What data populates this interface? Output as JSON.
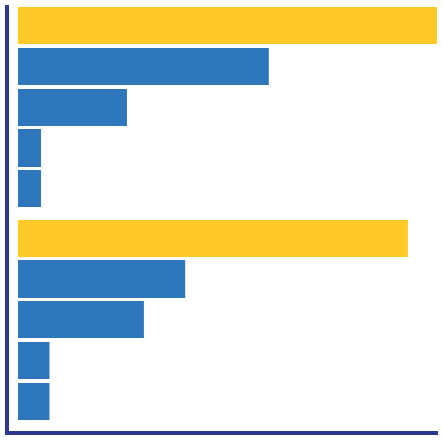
{
  "chart_data": {
    "type": "bar",
    "orientation": "horizontal",
    "title": "",
    "xlabel": "",
    "ylabel": "",
    "grid": false,
    "xlim": [
      0,
      100
    ],
    "groups": [
      {
        "bars": [
          {
            "value": 100,
            "color": "#FFCA27"
          },
          {
            "value": 60,
            "color": "#2E77BD"
          },
          {
            "value": 26,
            "color": "#2E77BD"
          },
          {
            "value": 5.5,
            "color": "#2E77BD"
          },
          {
            "value": 5.5,
            "color": "#2E77BD"
          }
        ]
      },
      {
        "bars": [
          {
            "value": 93,
            "color": "#FFCA27"
          },
          {
            "value": 40,
            "color": "#2E77BD"
          },
          {
            "value": 30,
            "color": "#2E77BD"
          },
          {
            "value": 7.5,
            "color": "#2E77BD"
          },
          {
            "value": 7.5,
            "color": "#2E77BD"
          }
        ]
      }
    ],
    "axis_color": "#2B3990"
  }
}
